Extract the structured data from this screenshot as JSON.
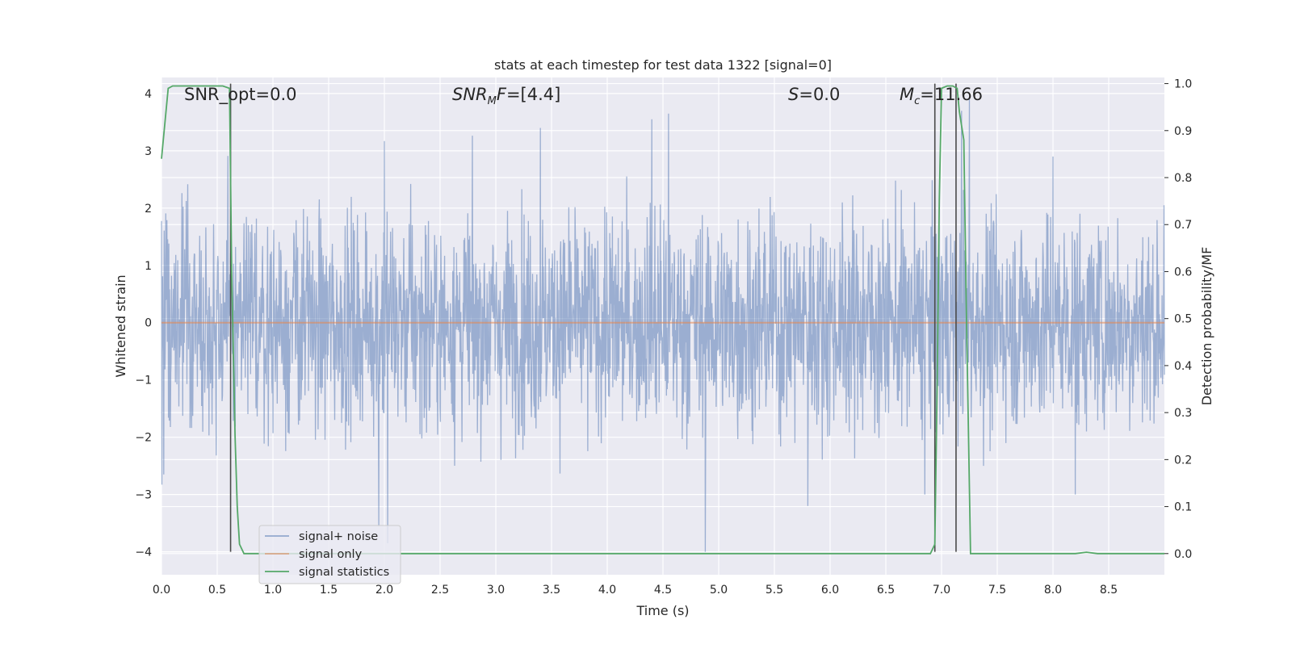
{
  "chart_data": {
    "type": "line",
    "title": "stats at each timestep for test data 1322 [signal=0]",
    "xlabel": "Time (s)",
    "ylabel_left": "Whitened strain",
    "ylabel_right": "Detection probability/MF",
    "xlim": [
      0.0,
      9.0
    ],
    "ylim_left": [
      -4.4,
      4.28
    ],
    "ylim_right": [
      -0.045,
      1.013
    ],
    "x_ticks": [
      "0.0",
      "0.5",
      "1.0",
      "1.5",
      "2.0",
      "2.5",
      "3.0",
      "3.5",
      "4.0",
      "4.5",
      "5.0",
      "5.5",
      "6.0",
      "6.5",
      "7.0",
      "7.5",
      "8.0",
      "8.5"
    ],
    "y_ticks_left": [
      "−4",
      "−3",
      "−2",
      "−1",
      "0",
      "1",
      "2",
      "3",
      "4"
    ],
    "y_ticks_right": [
      "0.0",
      "0.1",
      "0.2",
      "0.3",
      "0.4",
      "0.5",
      "0.6",
      "0.7",
      "0.8",
      "0.9",
      "1.0"
    ],
    "grid": true,
    "legend_position": "lower-left",
    "annotations": {
      "snr_opt": "SNR_opt=0.0",
      "snr_mf_main": "SNR",
      "snr_mf_sub": "M",
      "snr_mf_rest": "F=[4.4]",
      "s_main": "S",
      "s_rest": "=0.0",
      "mc_main": "M",
      "mc_sub": "c",
      "mc_rest": "=11.66"
    },
    "series": [
      {
        "name": "signal+ noise",
        "axis": "left",
        "color": "#4c72b0",
        "style": "noise",
        "mean": 0.0,
        "typical_envelope": 1.55,
        "peak_points": [
          [
            2.0,
            3.17
          ],
          [
            3.4,
            3.4
          ],
          [
            4.4,
            3.55
          ],
          [
            4.55,
            3.65
          ],
          [
            7.25,
            3.9
          ],
          [
            7.18,
            3.7
          ],
          [
            8.0,
            2.9
          ],
          [
            1.95,
            -3.55
          ],
          [
            2.03,
            -3.85
          ],
          [
            4.88,
            -4.0
          ],
          [
            5.8,
            -3.2
          ],
          [
            6.85,
            -3.0
          ],
          [
            0.02,
            -2.65
          ],
          [
            8.2,
            -3.0
          ]
        ]
      },
      {
        "name": "signal only",
        "axis": "left",
        "color": "#dd8452",
        "x": [
          0.0,
          9.0
        ],
        "y": [
          0.0,
          0.0
        ]
      },
      {
        "name": "signal statistics",
        "axis": "right",
        "color": "#55a868",
        "x": [
          0.0,
          0.06,
          0.1,
          0.15,
          0.3,
          0.45,
          0.55,
          0.61,
          0.63,
          0.66,
          0.68,
          0.7,
          0.74,
          0.8,
          2.0,
          4.0,
          6.0,
          6.8,
          6.9,
          6.94,
          6.96,
          6.98,
          7.0,
          7.05,
          7.1,
          7.14,
          7.16,
          7.2,
          7.22,
          7.26,
          7.3,
          8.0,
          8.2,
          8.3,
          8.4,
          9.0
        ],
        "y": [
          0.84,
          0.99,
          0.995,
          0.995,
          0.995,
          0.995,
          0.995,
          0.99,
          0.6,
          0.25,
          0.1,
          0.02,
          0.0,
          0.0,
          0.0,
          0.0,
          0.0,
          0.0,
          0.0,
          0.02,
          0.35,
          0.75,
          0.99,
          0.995,
          0.995,
          0.99,
          0.94,
          0.88,
          0.55,
          0.0,
          0.0,
          0.0,
          0.0,
          0.003,
          0.0,
          0.0
        ]
      }
    ],
    "vertical_markers": {
      "color": "#4a4a4a",
      "x": [
        0.62,
        6.94,
        7.13
      ],
      "left_y_from": -4.0,
      "right_y_to": 1.0
    }
  }
}
